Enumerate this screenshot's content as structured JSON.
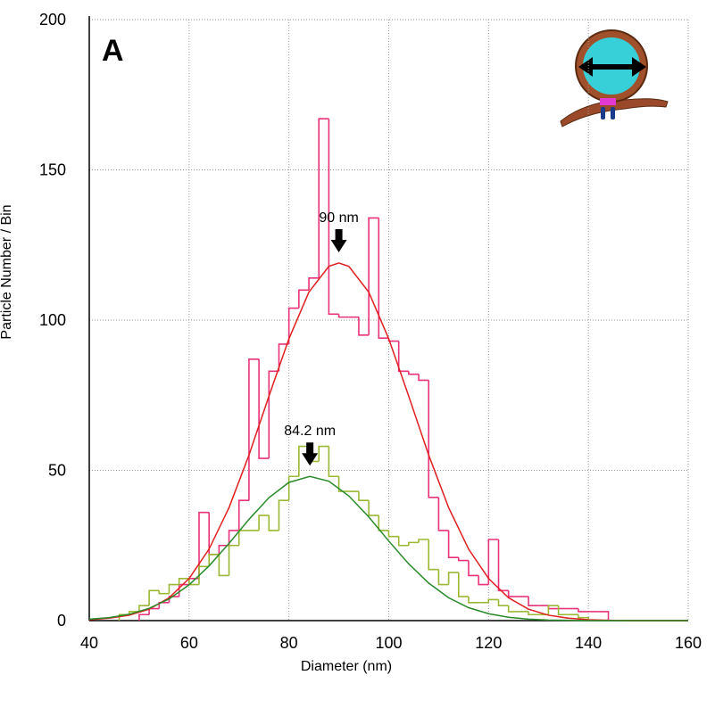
{
  "chart_data": {
    "type": "histogram",
    "panel_label": "A",
    "xlabel": "Diameter (nm)",
    "ylabel": "Particle Number / Bin",
    "xlim": [
      40,
      160
    ],
    "xticks": [
      40,
      60,
      80,
      100,
      120,
      140,
      160
    ],
    "ylim": [
      0,
      200
    ],
    "yticks": [
      0,
      50,
      100,
      150,
      200
    ],
    "grid": true,
    "series": [
      {
        "color": "#e8337a",
        "bins": [
          50,
          52,
          54,
          56,
          58,
          60,
          62,
          64,
          66,
          68,
          70,
          72,
          74,
          76,
          78,
          80,
          82,
          84,
          86,
          88,
          90,
          92,
          94,
          96,
          98,
          100,
          102,
          104,
          106,
          108,
          110,
          112,
          114,
          116,
          118,
          120,
          122,
          124,
          126,
          128,
          130,
          132,
          134,
          136,
          138,
          140,
          142,
          144
        ],
        "values": [
          2,
          4,
          6,
          8,
          12,
          14,
          36,
          22,
          25,
          30,
          40,
          87,
          54,
          83,
          92,
          104,
          110,
          114,
          167,
          102,
          101,
          101,
          95,
          134,
          94,
          93,
          83,
          82,
          80,
          41,
          30,
          21,
          20,
          15,
          12,
          27,
          10,
          8,
          8,
          5,
          5,
          4,
          4,
          4,
          3,
          3,
          3
        ]
      },
      {
        "color": "#9ab833",
        "bins": [
          46,
          48,
          50,
          52,
          54,
          56,
          58,
          60,
          62,
          64,
          66,
          68,
          70,
          72,
          74,
          76,
          78,
          80,
          82,
          84,
          86,
          88,
          90,
          92,
          94,
          96,
          98,
          100,
          102,
          104,
          106,
          108,
          110,
          112,
          114,
          116,
          118,
          120,
          122,
          124,
          126,
          128,
          130,
          132,
          134,
          136,
          138,
          140
        ],
        "values": [
          2,
          3,
          5,
          10,
          9,
          12,
          14,
          12,
          18,
          22,
          15,
          25,
          30,
          30,
          35,
          30,
          40,
          48,
          58,
          53,
          58,
          48,
          43,
          43,
          40,
          35,
          30,
          28,
          25,
          26,
          27,
          17,
          12,
          16,
          8,
          6,
          6,
          7,
          5,
          3,
          3,
          2,
          2,
          5,
          2,
          2,
          1
        ]
      }
    ],
    "fits": [
      {
        "color": "#e02020",
        "label": "90 nm",
        "x": [
          40,
          44,
          48,
          52,
          56,
          60,
          64,
          68,
          72,
          76,
          80,
          84,
          88,
          90,
          92,
          96,
          100,
          104,
          108,
          112,
          116,
          120,
          124,
          128,
          132,
          136,
          140,
          144,
          148,
          152,
          156,
          160
        ],
        "values": [
          0.3,
          0.8,
          1.8,
          3.8,
          7.6,
          14.0,
          23.8,
          37.6,
          55.1,
          74.7,
          93.8,
          109.3,
          117.9,
          119,
          117.9,
          109.3,
          93.8,
          74.7,
          55.1,
          37.6,
          23.8,
          14.0,
          7.6,
          3.8,
          1.8,
          0.8,
          0.3,
          0.1,
          0,
          0,
          0,
          0
        ]
      },
      {
        "color": "#2a8a2a",
        "label": "84.2 nm",
        "x": [
          40,
          44,
          48,
          52,
          56,
          60,
          64,
          68,
          72,
          76,
          80,
          84.2,
          88,
          92,
          96,
          100,
          104,
          108,
          112,
          116,
          120,
          124,
          128,
          132,
          136,
          140,
          144,
          148,
          152,
          156,
          160
        ],
        "values": [
          0.5,
          1.0,
          2.1,
          4.1,
          7.2,
          11.9,
          18.2,
          25.7,
          33.7,
          40.9,
          46.0,
          48,
          46.4,
          41.5,
          34.5,
          26.5,
          18.9,
          12.5,
          7.6,
          4.3,
          2.3,
          1.1,
          0.5,
          0.2,
          0.1,
          0,
          0,
          0,
          0,
          0,
          0
        ]
      }
    ]
  }
}
